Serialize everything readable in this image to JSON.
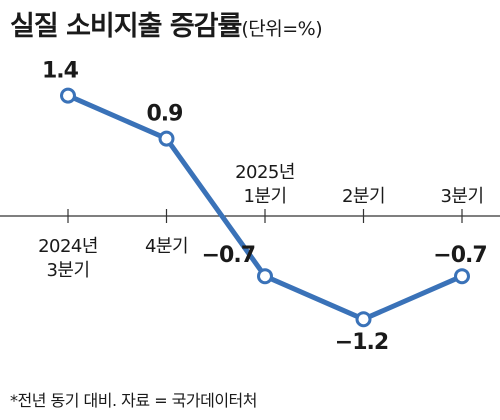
{
  "title": "실질 소비지출 증감률",
  "title_unit": "(단위=%)",
  "footnote": "*전년 동기 대비. 자료 = 국가데이터처",
  "colors": {
    "line": "#3a72b8",
    "marker_fill": "#ffffff",
    "axis": "#333333",
    "text": "#1a1a1a"
  },
  "chart_data": {
    "type": "line",
    "title": "실질 소비지출 증감률",
    "ylabel": "(단위=%)",
    "xlabel": "",
    "categories": [
      [
        "2024년",
        "3분기"
      ],
      [
        "4분기"
      ],
      [
        "2025년",
        "1분기"
      ],
      [
        "2분기"
      ],
      [
        "3분기"
      ]
    ],
    "values": [
      1.4,
      0.9,
      -0.7,
      -1.2,
      -0.7
    ],
    "value_labels": [
      "1.4",
      "0.9",
      "−0.7",
      "−1.2",
      "−0.7"
    ],
    "ylim": [
      -1.6,
      1.7
    ],
    "grid": false,
    "legend": "none"
  }
}
